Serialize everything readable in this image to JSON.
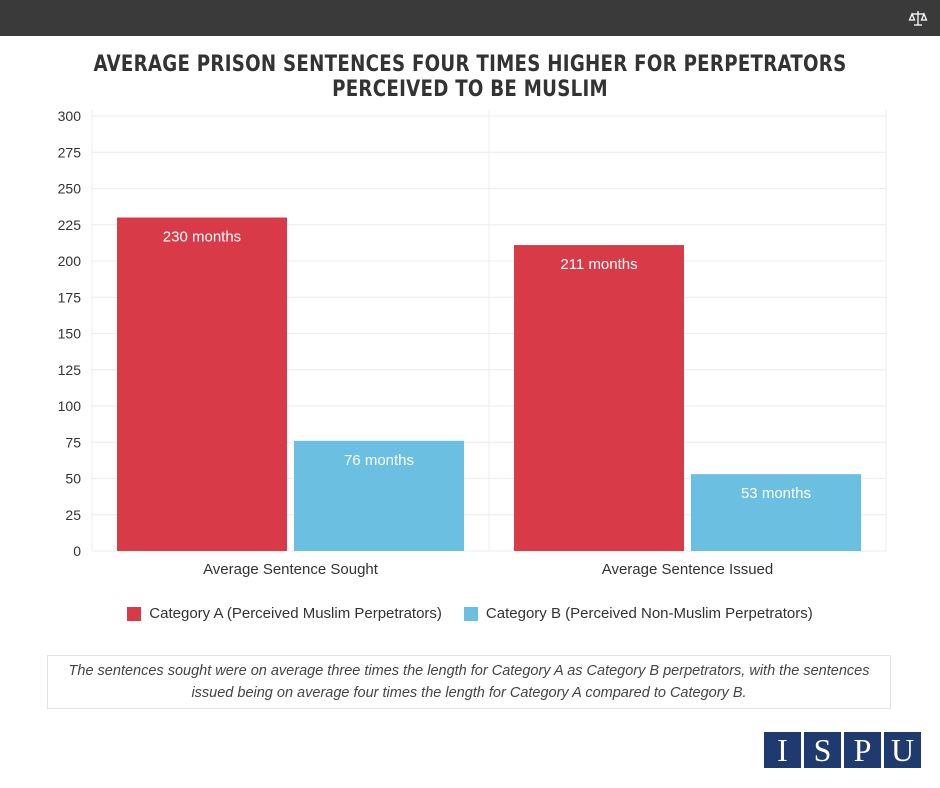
{
  "header": {
    "icon": "scale-icon"
  },
  "title": "AVERAGE PRISON SENTENCES FOUR TIMES HIGHER FOR PERPETRATORS PERCEIVED TO BE MUSLIM",
  "chart_data": {
    "type": "bar",
    "title": "AVERAGE PRISON SENTENCES FOUR TIMES HIGHER FOR PERPETRATORS PERCEIVED TO BE MUSLIM",
    "categories": [
      "Average Sentence Sought",
      "Average Sentence Issued"
    ],
    "series": [
      {
        "name": "Category A (Perceived Muslim Perpetrators)",
        "values": [
          230,
          211
        ],
        "labels": [
          "230 months",
          "211 months"
        ],
        "color": "#d93a48"
      },
      {
        "name": "Category B (Perceived Non-Muslim Perpetrators)",
        "values": [
          76,
          53
        ],
        "labels": [
          "76 months",
          "53 months"
        ],
        "color": "#6bbfe0"
      }
    ],
    "ylim": [
      0,
      300
    ],
    "yticks": [
      0,
      25,
      50,
      75,
      100,
      125,
      150,
      175,
      200,
      225,
      250,
      275,
      300
    ],
    "xlabel": "",
    "ylabel": "",
    "legend": "bottom",
    "grid": true
  },
  "note": "The sentences sought were on average three times the length for Category A as Category B perpetrators, with the sentences issued being on average four times the length for Category A compared to Category B.",
  "logo": {
    "letters": [
      "I",
      "S",
      "P",
      "U"
    ],
    "color": "#1e3a6e"
  }
}
